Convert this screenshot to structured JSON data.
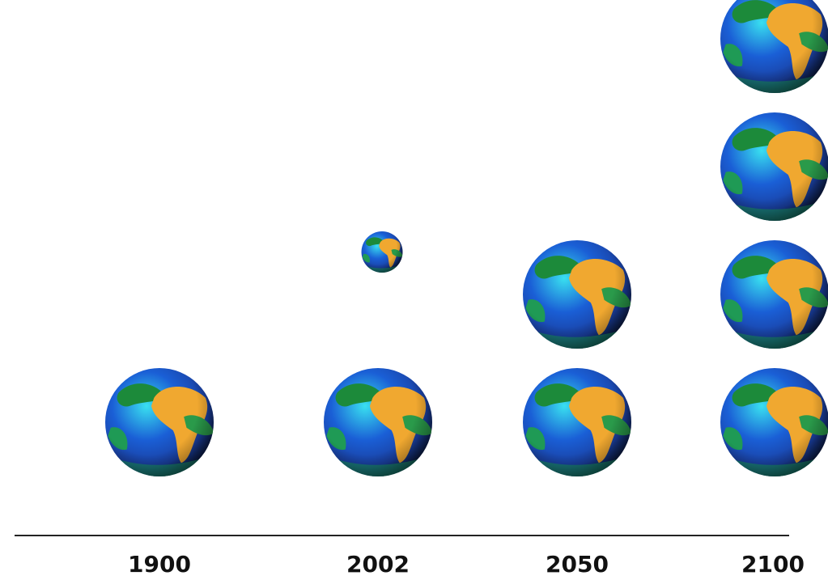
{
  "chart_data": {
    "type": "pictograph",
    "categories": [
      "1900",
      "2002",
      "2050",
      "2100"
    ],
    "values": [
      1,
      1.2,
      2,
      4
    ]
  }
}
